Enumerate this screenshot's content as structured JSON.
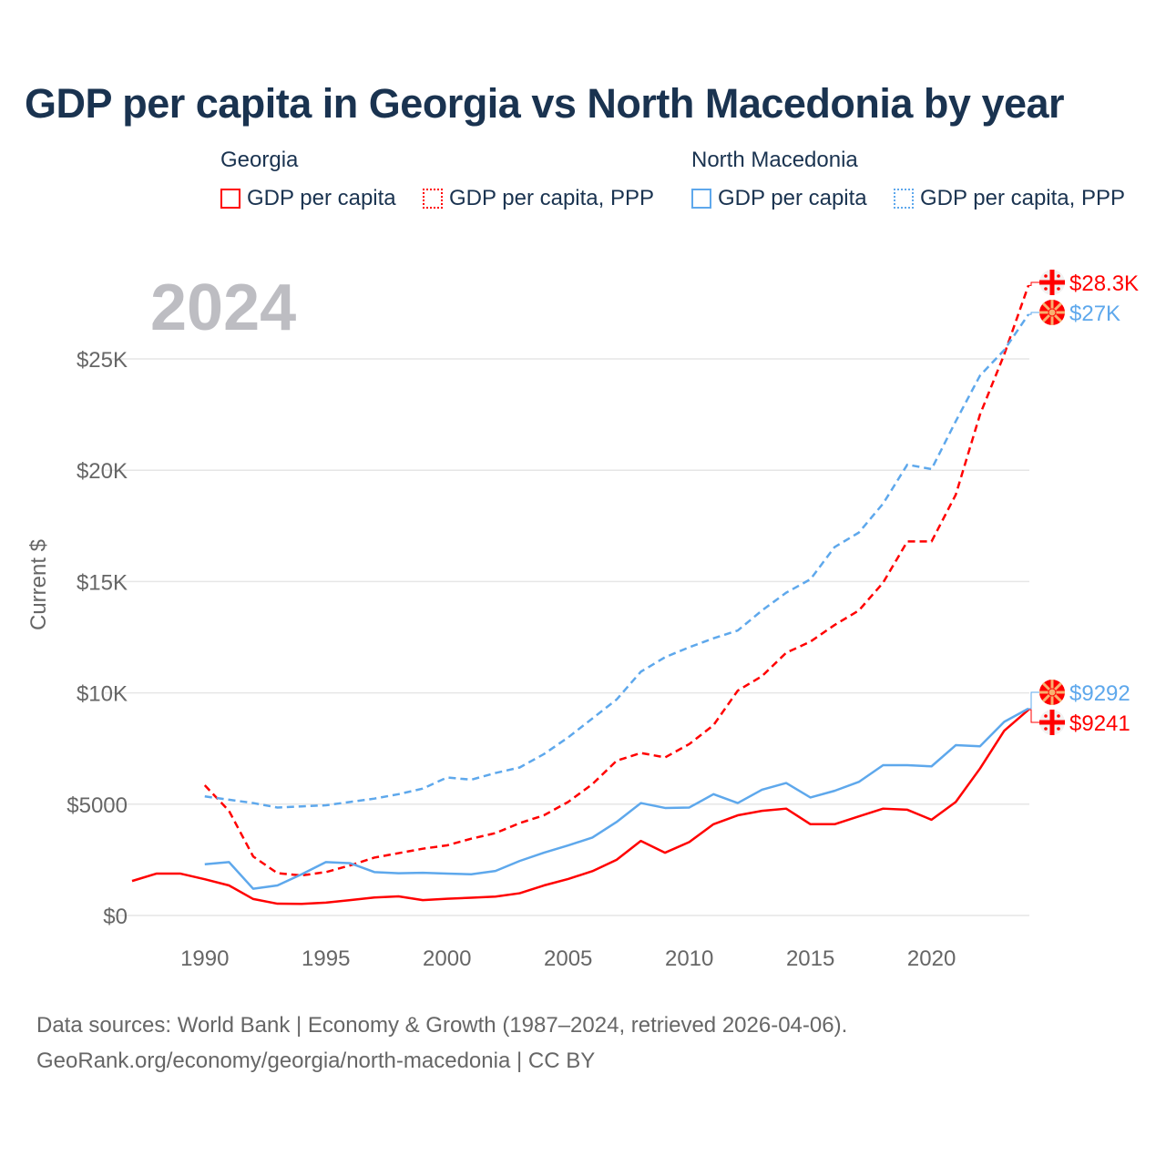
{
  "chart_data": {
    "type": "line",
    "title": "GDP per capita in Georgia vs North Macedonia by year",
    "year_label": "2024",
    "ylabel": "Current $",
    "xlabel": "",
    "xlim": [
      1987,
      2024
    ],
    "ylim": [
      0,
      29000
    ],
    "grid": true,
    "x_ticks": [
      1990,
      1995,
      2000,
      2005,
      2010,
      2015,
      2020
    ],
    "x_tick_labels": [
      "1990",
      "1995",
      "2000",
      "2005",
      "2010",
      "2015",
      "2020"
    ],
    "y_ticks": [
      0,
      5000,
      10000,
      15000,
      20000,
      25000
    ],
    "y_tick_labels": [
      "$0",
      "$5000",
      "$10K",
      "$15K",
      "$20K",
      "$25K"
    ],
    "legend": {
      "placement": "top",
      "groups": [
        {
          "name": "Georgia",
          "items": [
            "GDP per capita",
            "GDP per capita, PPP"
          ]
        },
        {
          "name": "North Macedonia",
          "items": [
            "GDP per capita",
            "GDP per capita, PPP"
          ]
        }
      ]
    },
    "series": [
      {
        "name": "Georgia GDP per capita",
        "color": "#ff0000",
        "dash": false,
        "start": 1987,
        "end_label": "$9241",
        "values": [
          1550,
          1880,
          1880,
          1630,
          1350,
          740,
          530,
          520,
          580,
          690,
          810,
          860,
          690,
          750,
          800,
          850,
          1000,
          1350,
          1640,
          1990,
          2500,
          3350,
          2820,
          3300,
          4100,
          4500,
          4700,
          4800,
          4100,
          4100,
          4450,
          4800,
          4750,
          4300,
          5100,
          6600,
          8300,
          9241
        ]
      },
      {
        "name": "Georgia GDP per capita, PPP",
        "color": "#ff0000",
        "dash": true,
        "start": 1990,
        "end_label": "$28.3K",
        "values": [
          5850,
          4700,
          2650,
          1900,
          1800,
          1950,
          2250,
          2600,
          2800,
          3000,
          3150,
          3450,
          3700,
          4150,
          4500,
          5100,
          5900,
          6950,
          7300,
          7100,
          7700,
          8550,
          10100,
          10750,
          11800,
          12300,
          13050,
          13700,
          14950,
          16800,
          16800,
          18900,
          22500,
          25200,
          28300
        ]
      },
      {
        "name": "North Macedonia GDP per capita",
        "color": "#5ea8ec",
        "dash": false,
        "start": 1990,
        "end_label": "$9292",
        "values": [
          2300,
          2400,
          1200,
          1350,
          1850,
          2400,
          2350,
          1950,
          1900,
          1920,
          1880,
          1850,
          2000,
          2450,
          2820,
          3150,
          3500,
          4200,
          5050,
          4830,
          4850,
          5450,
          5050,
          5650,
          5950,
          5300,
          5600,
          6000,
          6750,
          6750,
          6700,
          7650,
          7600,
          8700,
          9292
        ]
      },
      {
        "name": "North Macedonia GDP per capita, PPP",
        "color": "#5ea8ec",
        "dash": true,
        "start": 1990,
        "end_label": "$27K",
        "values": [
          5350,
          5200,
          5050,
          4850,
          4900,
          4950,
          5100,
          5250,
          5450,
          5700,
          6200,
          6100,
          6400,
          6650,
          7250,
          8000,
          8850,
          9700,
          10950,
          11600,
          12050,
          12450,
          12800,
          13700,
          14500,
          15100,
          16550,
          17200,
          18500,
          20250,
          20050,
          22200,
          24250,
          25400,
          27000
        ]
      }
    ],
    "footer": [
      "Data sources: World Bank | Economy & Growth (1987–2024, retrieved 2026-04-06).",
      "GeoRank.org/economy/georgia/north-macedonia | CC BY"
    ]
  }
}
